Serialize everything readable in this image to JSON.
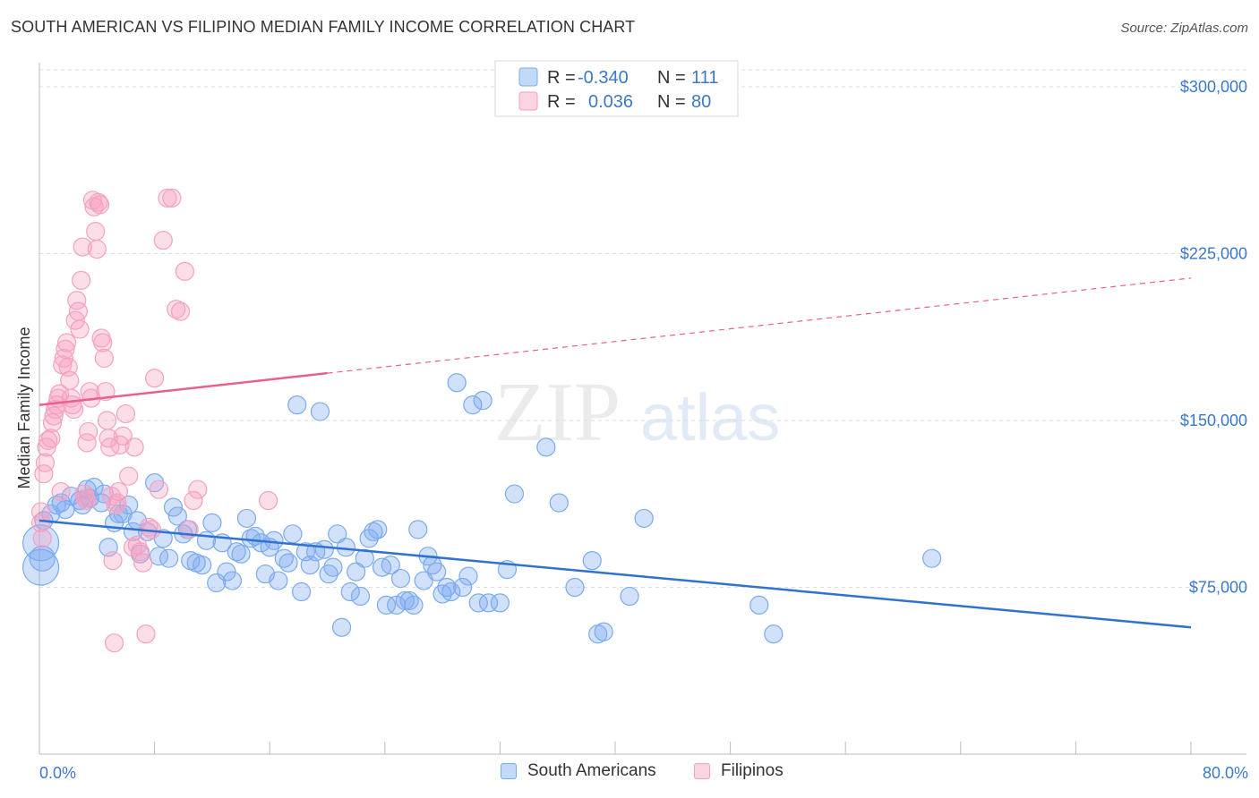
{
  "header": {
    "title": "SOUTH AMERICAN VS FILIPINO MEDIAN FAMILY INCOME CORRELATION CHART",
    "source": "Source: ZipAtlas.com"
  },
  "watermark": {
    "zip": "ZIP",
    "atlas": "atlas"
  },
  "legend": {
    "rows": [
      {
        "r_label": "R =",
        "r_value": "-0.340",
        "n_label": "N =",
        "n_value": "111",
        "color": "#7aaaf0"
      },
      {
        "r_label": "R =",
        "r_value": "0.036",
        "n_label": "N =",
        "n_value": "80",
        "color": "#f5a0bf"
      }
    ]
  },
  "bottom_legend": [
    {
      "label": "South Americans",
      "color": "#7aaaf0"
    },
    {
      "label": "Filipinos",
      "color": "#f5a0bf"
    }
  ],
  "chart_data": {
    "type": "scatter",
    "title": "SOUTH AMERICAN VS FILIPINO MEDIAN FAMILY INCOME CORRELATION CHART",
    "xlabel": "",
    "ylabel": "Median Family Income",
    "xlim": [
      0,
      80
    ],
    "ylim": [
      0,
      320000
    ],
    "x_tick_labels": [
      "0.0%",
      "80.0%"
    ],
    "y_ticks": [
      75000,
      150000,
      225000,
      300000
    ],
    "y_tick_labels": [
      "$75,000",
      "$150,000",
      "$225,000",
      "$300,000"
    ],
    "grid": true,
    "legend_position": "top-center",
    "series": [
      {
        "name": "South Americans",
        "color": "#7aaaf0",
        "line_color": "#2f72d0",
        "trend": {
          "x": [
            0,
            80
          ],
          "y": [
            105000,
            57000
          ],
          "dashed_from": null
        },
        "points": [
          [
            0.1,
            95000
          ],
          [
            0.1,
            84000
          ],
          [
            0.3,
            105000
          ],
          [
            0.8,
            108000
          ],
          [
            1.2,
            112000
          ],
          [
            1.5,
            113000
          ],
          [
            1.8,
            110000
          ],
          [
            2.2,
            116000
          ],
          [
            2.8,
            114000
          ],
          [
            3.0,
            112000
          ],
          [
            3.3,
            119000
          ],
          [
            3.5,
            115000
          ],
          [
            3.8,
            120000
          ],
          [
            4.3,
            113000
          ],
          [
            4.5,
            117000
          ],
          [
            4.8,
            93000
          ],
          [
            5.2,
            104000
          ],
          [
            5.5,
            108000
          ],
          [
            5.8,
            108000
          ],
          [
            6.2,
            112000
          ],
          [
            6.5,
            100000
          ],
          [
            6.8,
            105000
          ],
          [
            7.0,
            90000
          ],
          [
            7.5,
            100000
          ],
          [
            8.0,
            122000
          ],
          [
            8.3,
            89000
          ],
          [
            8.6,
            97000
          ],
          [
            9.0,
            88000
          ],
          [
            9.3,
            111000
          ],
          [
            9.6,
            107000
          ],
          [
            10.0,
            99000
          ],
          [
            10.3,
            101000
          ],
          [
            10.5,
            87000
          ],
          [
            10.9,
            86000
          ],
          [
            11.3,
            85000
          ],
          [
            11.6,
            96000
          ],
          [
            12.0,
            104000
          ],
          [
            12.3,
            77000
          ],
          [
            12.7,
            95000
          ],
          [
            13.0,
            82000
          ],
          [
            13.4,
            78000
          ],
          [
            13.7,
            91000
          ],
          [
            14.0,
            90000
          ],
          [
            14.4,
            106000
          ],
          [
            14.7,
            97000
          ],
          [
            15.0,
            98000
          ],
          [
            15.4,
            95000
          ],
          [
            15.7,
            81000
          ],
          [
            16.0,
            93000
          ],
          [
            16.3,
            96000
          ],
          [
            16.6,
            78000
          ],
          [
            17.0,
            88000
          ],
          [
            17.3,
            86000
          ],
          [
            17.6,
            99000
          ],
          [
            17.9,
            157000
          ],
          [
            18.2,
            73000
          ],
          [
            18.5,
            91000
          ],
          [
            18.8,
            85000
          ],
          [
            19.2,
            91000
          ],
          [
            19.5,
            154000
          ],
          [
            19.8,
            92000
          ],
          [
            20.1,
            81000
          ],
          [
            20.4,
            84000
          ],
          [
            20.7,
            99000
          ],
          [
            21.0,
            57000
          ],
          [
            21.3,
            93000
          ],
          [
            21.6,
            73000
          ],
          [
            22.0,
            82000
          ],
          [
            22.3,
            71000
          ],
          [
            22.6,
            88000
          ],
          [
            22.9,
            97000
          ],
          [
            23.2,
            100000
          ],
          [
            23.5,
            101000
          ],
          [
            23.8,
            84000
          ],
          [
            24.1,
            67000
          ],
          [
            24.4,
            85000
          ],
          [
            24.8,
            67000
          ],
          [
            25.1,
            79000
          ],
          [
            25.4,
            69000
          ],
          [
            25.7,
            69000
          ],
          [
            26.0,
            67000
          ],
          [
            26.3,
            101000
          ],
          [
            26.7,
            78000
          ],
          [
            27.0,
            89000
          ],
          [
            27.3,
            85000
          ],
          [
            27.6,
            82000
          ],
          [
            28.0,
            72000
          ],
          [
            28.3,
            75000
          ],
          [
            28.6,
            73000
          ],
          [
            29.0,
            167000
          ],
          [
            29.4,
            75000
          ],
          [
            29.8,
            80000
          ],
          [
            30.1,
            157000
          ],
          [
            30.5,
            68000
          ],
          [
            30.8,
            159000
          ],
          [
            31.2,
            68000
          ],
          [
            32.0,
            68000
          ],
          [
            32.5,
            83000
          ],
          [
            33.0,
            117000
          ],
          [
            35.2,
            138000
          ],
          [
            36.1,
            113000
          ],
          [
            37.2,
            75000
          ],
          [
            38.4,
            87000
          ],
          [
            38.8,
            54000
          ],
          [
            39.2,
            55000
          ],
          [
            41.0,
            71000
          ],
          [
            42.0,
            106000
          ],
          [
            50.0,
            67000
          ],
          [
            51.0,
            54000
          ],
          [
            62.0,
            88000
          ],
          [
            0.2,
            88000
          ]
        ]
      },
      {
        "name": "Filipinos",
        "color": "#f5a0bf",
        "line_color": "#e8608f",
        "trend": {
          "x": [
            0,
            80
          ],
          "y": [
            157000,
            214000
          ],
          "dashed_from": 20
        },
        "points": [
          [
            0.1,
            104000
          ],
          [
            0.1,
            109000
          ],
          [
            0.2,
            97000
          ],
          [
            0.3,
            126000
          ],
          [
            0.4,
            131000
          ],
          [
            0.5,
            138000
          ],
          [
            0.6,
            141000
          ],
          [
            0.8,
            142000
          ],
          [
            0.9,
            149000
          ],
          [
            1.0,
            152000
          ],
          [
            1.1,
            155000
          ],
          [
            1.2,
            157000
          ],
          [
            1.3,
            160000
          ],
          [
            1.4,
            162000
          ],
          [
            1.5,
            118000
          ],
          [
            1.6,
            175000
          ],
          [
            1.7,
            178000
          ],
          [
            1.8,
            182000
          ],
          [
            1.9,
            185000
          ],
          [
            2.0,
            174000
          ],
          [
            2.1,
            168000
          ],
          [
            2.2,
            160000
          ],
          [
            2.3,
            157000
          ],
          [
            2.4,
            155000
          ],
          [
            2.5,
            195000
          ],
          [
            2.6,
            204000
          ],
          [
            2.7,
            199000
          ],
          [
            2.8,
            191000
          ],
          [
            2.9,
            213000
          ],
          [
            3.0,
            228000
          ],
          [
            3.1,
            117000
          ],
          [
            3.2,
            115000
          ],
          [
            3.3,
            140000
          ],
          [
            3.4,
            145000
          ],
          [
            3.5,
            163000
          ],
          [
            3.6,
            160000
          ],
          [
            3.7,
            249000
          ],
          [
            3.8,
            246000
          ],
          [
            3.9,
            235000
          ],
          [
            4.0,
            227000
          ],
          [
            4.1,
            248000
          ],
          [
            4.2,
            247000
          ],
          [
            4.3,
            187000
          ],
          [
            4.4,
            185000
          ],
          [
            4.5,
            178000
          ],
          [
            4.6,
            163000
          ],
          [
            4.7,
            150000
          ],
          [
            4.8,
            142000
          ],
          [
            4.9,
            138000
          ],
          [
            5.0,
            116000
          ],
          [
            5.1,
            87000
          ],
          [
            5.2,
            50000
          ],
          [
            5.3,
            112000
          ],
          [
            5.4,
            113000
          ],
          [
            5.5,
            118000
          ],
          [
            5.6,
            139000
          ],
          [
            5.8,
            143000
          ],
          [
            6.0,
            153000
          ],
          [
            6.2,
            125000
          ],
          [
            6.5,
            93000
          ],
          [
            6.8,
            94000
          ],
          [
            7.0,
            91000
          ],
          [
            7.2,
            86000
          ],
          [
            7.4,
            54000
          ],
          [
            7.6,
            102000
          ],
          [
            7.8,
            101000
          ],
          [
            8.0,
            169000
          ],
          [
            8.3,
            119000
          ],
          [
            8.6,
            231000
          ],
          [
            8.9,
            250000
          ],
          [
            9.2,
            250000
          ],
          [
            9.5,
            200000
          ],
          [
            9.8,
            199000
          ],
          [
            10.1,
            217000
          ],
          [
            10.4,
            101000
          ],
          [
            10.7,
            114000
          ],
          [
            11.0,
            119000
          ],
          [
            15.9,
            114000
          ],
          [
            3.3,
            114000
          ],
          [
            6.6,
            138000
          ]
        ]
      }
    ]
  }
}
